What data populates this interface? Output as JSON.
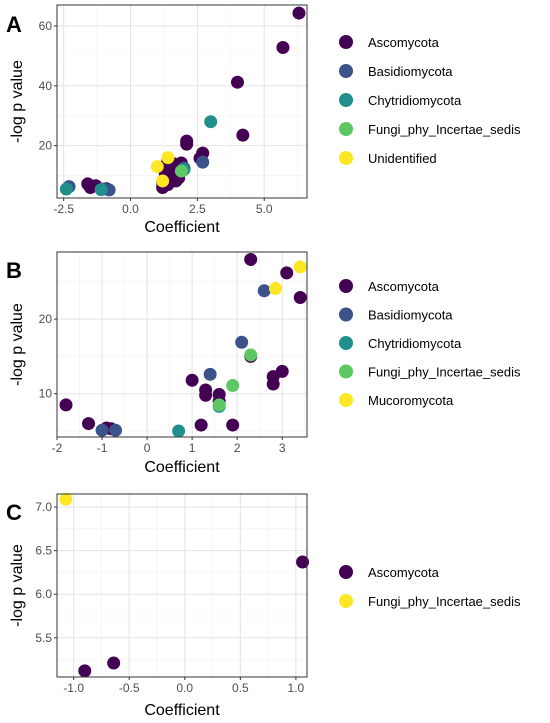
{
  "chart_data": [
    {
      "type": "scatter",
      "panel_label": "A",
      "xlabel": "Coefficient",
      "ylabel": "-log p value",
      "xlim": [
        -2.75,
        6.6
      ],
      "ylim": [
        2.5,
        67
      ],
      "xticks": [
        -2.5,
        0.0,
        2.5,
        5.0
      ],
      "xtick_labels": [
        "-2.5",
        "0.0",
        "2.5",
        "5.0"
      ],
      "yticks": [
        20,
        40,
        60
      ],
      "ytick_labels": [
        "20",
        "40",
        "60"
      ],
      "grid": true,
      "legend_position": "right",
      "series": [
        {
          "name": "Ascomycota",
          "color": "#440154",
          "points": [
            [
              6.3,
              64.3
            ],
            [
              5.7,
              52.8
            ],
            [
              4.0,
              41.2
            ],
            [
              4.2,
              23.5
            ],
            [
              2.1,
              21.5
            ],
            [
              2.1,
              20.5
            ],
            [
              2.7,
              17.5
            ],
            [
              2.6,
              15.8
            ],
            [
              1.9,
              14.2
            ],
            [
              1.4,
              15.3
            ],
            [
              1.6,
              14.0
            ],
            [
              1.2,
              12.8
            ],
            [
              1.5,
              12.6
            ],
            [
              1.7,
              12.2
            ],
            [
              1.8,
              11.0
            ],
            [
              1.3,
              10.5
            ],
            [
              1.6,
              9.8
            ],
            [
              1.8,
              9.2
            ],
            [
              1.5,
              8.8
            ],
            [
              1.7,
              8.2
            ],
            [
              1.2,
              7.5
            ],
            [
              1.4,
              7.0
            ],
            [
              1.2,
              6.0
            ],
            [
              -1.6,
              7.2
            ],
            [
              -1.3,
              6.6
            ],
            [
              -0.9,
              5.6
            ],
            [
              -1.5,
              6.0
            ]
          ]
        },
        {
          "name": "Basidiomycota",
          "color": "#3b528b",
          "points": [
            [
              2.7,
              14.5
            ],
            [
              2.0,
              12.5
            ],
            [
              -2.3,
              6.3
            ],
            [
              -1.0,
              5.5
            ],
            [
              -0.8,
              5.2
            ]
          ]
        },
        {
          "name": "Chytridiomycota",
          "color": "#21908c",
          "points": [
            [
              3.0,
              28.0
            ],
            [
              2.0,
              12.0
            ],
            [
              -2.4,
              5.5
            ],
            [
              -1.1,
              5.3
            ]
          ]
        },
        {
          "name": "Fungi_phy_Incertae_sedis",
          "color": "#5dc863",
          "points": [
            [
              1.9,
              11.5
            ]
          ]
        },
        {
          "name": "Unidentified",
          "color": "#fde725",
          "points": [
            [
              1.0,
              13.0
            ],
            [
              1.4,
              16.0
            ],
            [
              1.2,
              8.2
            ]
          ]
        }
      ]
    },
    {
      "type": "scatter",
      "panel_label": "B",
      "xlabel": "Coefficient",
      "ylabel": "-log p value",
      "xlim": [
        -2.0,
        3.55
      ],
      "ylim": [
        4.2,
        29.0
      ],
      "xticks": [
        -2,
        -1,
        0,
        1,
        2,
        3
      ],
      "xtick_labels": [
        "-2",
        "-1",
        "0",
        "1",
        "2",
        "3"
      ],
      "yticks": [
        10,
        20
      ],
      "ytick_labels": [
        "10",
        "20"
      ],
      "grid": true,
      "legend_position": "right",
      "series": [
        {
          "name": "Ascomycota",
          "color": "#440154",
          "points": [
            [
              2.3,
              28.0
            ],
            [
              3.1,
              26.2
            ],
            [
              3.4,
              22.9
            ],
            [
              2.3,
              15.0
            ],
            [
              3.0,
              13.0
            ],
            [
              2.8,
              12.3
            ],
            [
              2.8,
              11.3
            ],
            [
              1.0,
              11.8
            ],
            [
              1.3,
              10.5
            ],
            [
              1.3,
              9.8
            ],
            [
              1.6,
              9.9
            ],
            [
              1.6,
              9.0
            ],
            [
              1.2,
              5.8
            ],
            [
              1.9,
              5.8
            ],
            [
              -1.8,
              8.5
            ],
            [
              -1.3,
              6.0
            ],
            [
              -0.9,
              5.4
            ],
            [
              -0.8,
              5.3
            ]
          ]
        },
        {
          "name": "Basidiomycota",
          "color": "#3b528b",
          "points": [
            [
              2.6,
              23.8
            ],
            [
              2.1,
              16.9
            ],
            [
              1.4,
              12.6
            ],
            [
              -1.0,
              5.1
            ],
            [
              -0.7,
              5.1
            ]
          ]
        },
        {
          "name": "Chytridiomycota",
          "color": "#21908c",
          "points": [
            [
              1.6,
              8.3
            ],
            [
              0.7,
              5.0
            ]
          ]
        },
        {
          "name": "Fungi_phy_Incertae_sedis",
          "color": "#5dc863",
          "points": [
            [
              1.9,
              11.1
            ],
            [
              2.3,
              15.2
            ],
            [
              1.6,
              8.5
            ]
          ]
        },
        {
          "name": "Mucoromycota",
          "color": "#fde725",
          "points": [
            [
              3.4,
              27.0
            ],
            [
              2.85,
              24.1
            ]
          ]
        }
      ]
    },
    {
      "type": "scatter",
      "panel_label": "C",
      "xlabel": "Coefficient",
      "ylabel": "-log p value",
      "xlim": [
        -1.15,
        1.1
      ],
      "ylim": [
        5.05,
        7.15
      ],
      "xticks": [
        -1.0,
        -0.5,
        0.0,
        0.5,
        1.0
      ],
      "xtick_labels": [
        "-1.0",
        "-0.5",
        "0.0",
        "0.5",
        "1.0"
      ],
      "yticks": [
        5.5,
        6.0,
        6.5,
        7.0
      ],
      "ytick_labels": [
        "5.5",
        "6.0",
        "6.5",
        "7.0"
      ],
      "grid": true,
      "legend_position": "right",
      "series": [
        {
          "name": "Ascomycota",
          "color": "#440154",
          "points": [
            [
              1.06,
              6.37
            ],
            [
              -0.64,
              5.21
            ],
            [
              -0.9,
              5.12
            ]
          ]
        },
        {
          "name": "Fungi_phy_Incertae_sedis",
          "color": "#fde725",
          "points": [
            [
              -1.07,
              7.09
            ]
          ]
        }
      ]
    }
  ]
}
